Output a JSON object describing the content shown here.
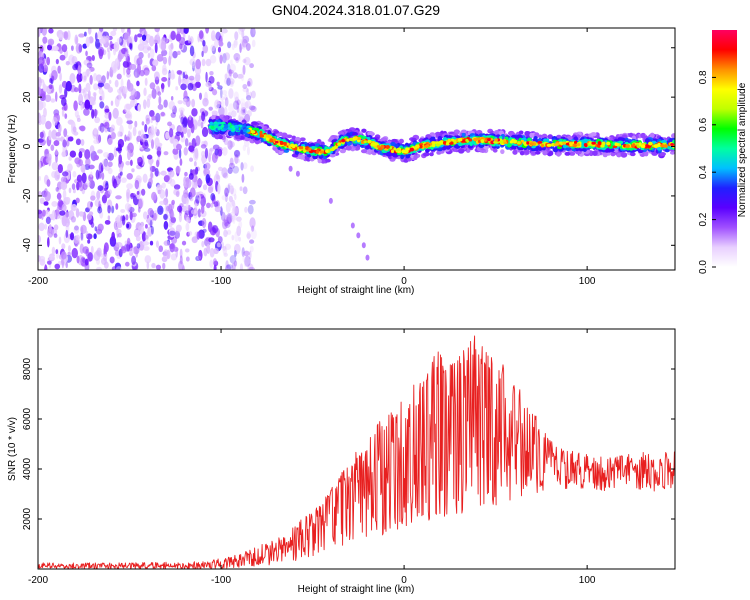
{
  "title": "GN04.2024.318.01.07.G29",
  "chart_data": [
    {
      "type": "heatmap",
      "title": "GN04.2024.318.01.07.G29",
      "xlabel": "Height of straight line (km)",
      "ylabel": "Frequency (Hz)",
      "xlim": [
        -200,
        148
      ],
      "ylim": [
        -50,
        48
      ],
      "xticks": [
        -200,
        -100,
        0,
        100
      ],
      "yticks": [
        -40,
        -20,
        0,
        20,
        40
      ],
      "grid": false,
      "ridge": {
        "x": [
          -106,
          -100,
          -92,
          -85,
          -78,
          -70,
          -62,
          -55,
          -48,
          -42,
          -36,
          -31,
          -26,
          -20,
          -14,
          -8,
          0,
          8,
          16,
          25,
          35,
          45,
          55,
          65,
          75,
          85,
          95,
          105,
          115,
          125,
          135,
          148
        ],
        "y": [
          8,
          8,
          7.5,
          6.5,
          5,
          2,
          0,
          -1,
          -2,
          -2,
          1,
          3,
          3,
          2,
          0,
          -1,
          -2,
          0,
          1,
          2,
          2.5,
          2.5,
          2,
          1.5,
          1,
          1,
          1,
          1,
          0.5,
          0.5,
          0.5,
          0.5
        ]
      },
      "noise_region_x": [
        -200,
        -82
      ],
      "colorbar": {
        "label": "Normalized spectral amplitude",
        "range": [
          0,
          1
        ],
        "ticks": [
          0,
          0.2,
          0.4,
          0.6,
          0.8
        ],
        "tick_labels": [
          "0.0",
          "0.2",
          "0.4",
          "0.6",
          "0.8"
        ],
        "colors": [
          "#ffffff",
          "#e8cfff",
          "#a050ff",
          "#5a00ff",
          "#2020ff",
          "#00c0ff",
          "#00ffa0",
          "#00ff00",
          "#c0ff00",
          "#ffff00",
          "#ff9000",
          "#ff0000",
          "#ff0060"
        ]
      }
    },
    {
      "type": "line",
      "xlabel": "Height of straight line (km)",
      "ylabel": "SNR (10 * v/v)",
      "xlim": [
        -200,
        148
      ],
      "ylim": [
        0,
        9600
      ],
      "xticks": [
        -200,
        -100,
        0,
        100
      ],
      "yticks": [
        2000,
        4000,
        6000,
        8000
      ],
      "grid": false,
      "color": "#e82020",
      "envelope": {
        "x": [
          -200,
          -150,
          -110,
          -100,
          -90,
          -80,
          -70,
          -60,
          -50,
          -40,
          -30,
          -20,
          -10,
          0,
          10,
          20,
          30,
          40,
          50,
          60,
          70,
          80,
          90,
          100,
          110,
          120,
          130,
          148
        ],
        "low": [
          0,
          0,
          0,
          0,
          50,
          100,
          200,
          300,
          500,
          800,
          1000,
          1200,
          1400,
          1700,
          1900,
          2000,
          2200,
          2400,
          2500,
          2700,
          3000,
          3200,
          3200,
          3200,
          3100,
          3100,
          3100,
          3100
        ],
        "high": [
          250,
          250,
          300,
          450,
          600,
          900,
          1300,
          1800,
          2300,
          3200,
          4300,
          5300,
          6200,
          7000,
          8000,
          8800,
          9000,
          9400,
          8600,
          7600,
          6400,
          5200,
          4800,
          4600,
          4500,
          4600,
          4700,
          4700
        ]
      }
    }
  ]
}
